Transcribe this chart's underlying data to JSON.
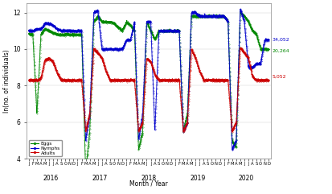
{
  "xlabel": "Month / Year",
  "ylabel": "ln(no. of individuals)",
  "ylim": [
    4,
    12.5
  ],
  "yticks": [
    4,
    6,
    8,
    10,
    12
  ],
  "year_labels": [
    "2016",
    "2017",
    "2018",
    "2019",
    "2020"
  ],
  "month_labels": [
    "J",
    "F",
    "M",
    "A",
    "M",
    "J",
    "J",
    "A",
    "S",
    "O",
    "N",
    "D"
  ],
  "colors": {
    "eggs": "#008800",
    "nymphs": "#0000cc",
    "adults": "#cc0000"
  },
  "end_labels": {
    "nymphs": {
      "value": "34,052",
      "color": "#0000cc",
      "y": 10.5
    },
    "eggs": {
      "value": "20,264",
      "color": "#008800",
      "y": 9.9
    },
    "adults": {
      "value": "5,052",
      "color": "#cc0000",
      "y": 8.5
    }
  },
  "background": "#ffffff",
  "legend_labels": [
    "Eggs",
    "Nymphs",
    "Adults"
  ]
}
